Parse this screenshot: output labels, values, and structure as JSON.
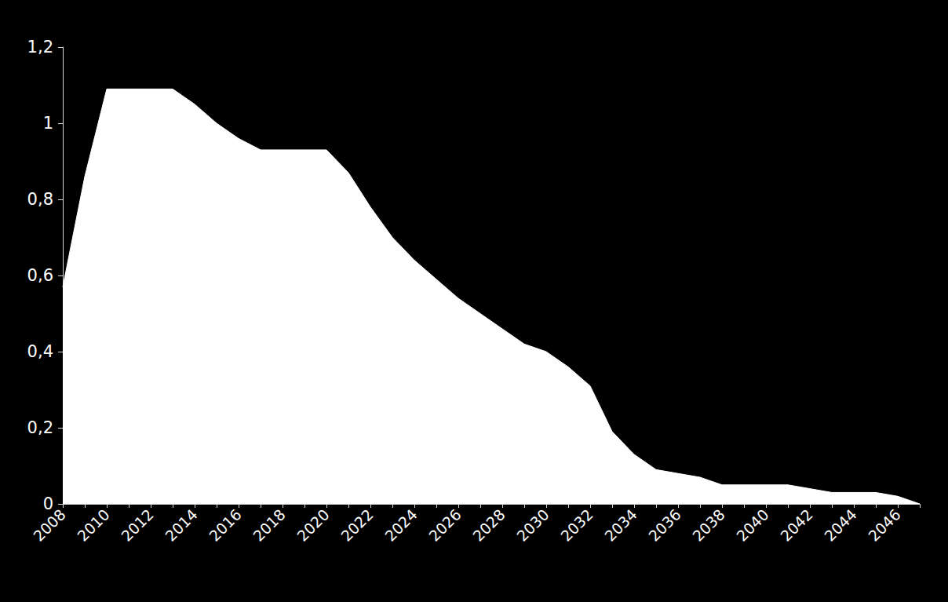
{
  "chart_data": {
    "type": "area",
    "categories": [
      "2008",
      null,
      "2010",
      null,
      "2012",
      null,
      "2014",
      null,
      "2016",
      null,
      "2018",
      null,
      "2020",
      null,
      "2022",
      null,
      "2024",
      null,
      "2026",
      null,
      "2028",
      null,
      "2030",
      null,
      "2032",
      null,
      "2034",
      null,
      "2036",
      null,
      "2038",
      null,
      "2040",
      null,
      "2042",
      null,
      "2044",
      null,
      "2046",
      null
    ],
    "values": [
      0.57,
      0.86,
      1.09,
      1.09,
      1.09,
      1.09,
      1.05,
      1.0,
      0.96,
      0.93,
      0.93,
      0.93,
      0.93,
      0.87,
      0.78,
      0.7,
      0.64,
      0.59,
      0.54,
      0.5,
      0.46,
      0.42,
      0.4,
      0.36,
      0.31,
      0.19,
      0.13,
      0.09,
      0.08,
      0.07,
      0.05,
      0.05,
      0.05,
      0.05,
      0.04,
      0.03,
      0.03,
      0.03,
      0.02,
      0.0
    ],
    "color": "#ffffff",
    "ylim": [
      0,
      1.2
    ],
    "yticks": [
      0,
      {
        "value": 0.2,
        "label": "0,2"
      },
      {
        "value": 0.4,
        "label": "0,4"
      },
      {
        "value": 0.6,
        "label": "0,6"
      },
      {
        "value": 0.8,
        "label": "0,8"
      },
      1,
      {
        "value": 1.2,
        "label": "1,2"
      }
    ],
    "grid": false
  }
}
